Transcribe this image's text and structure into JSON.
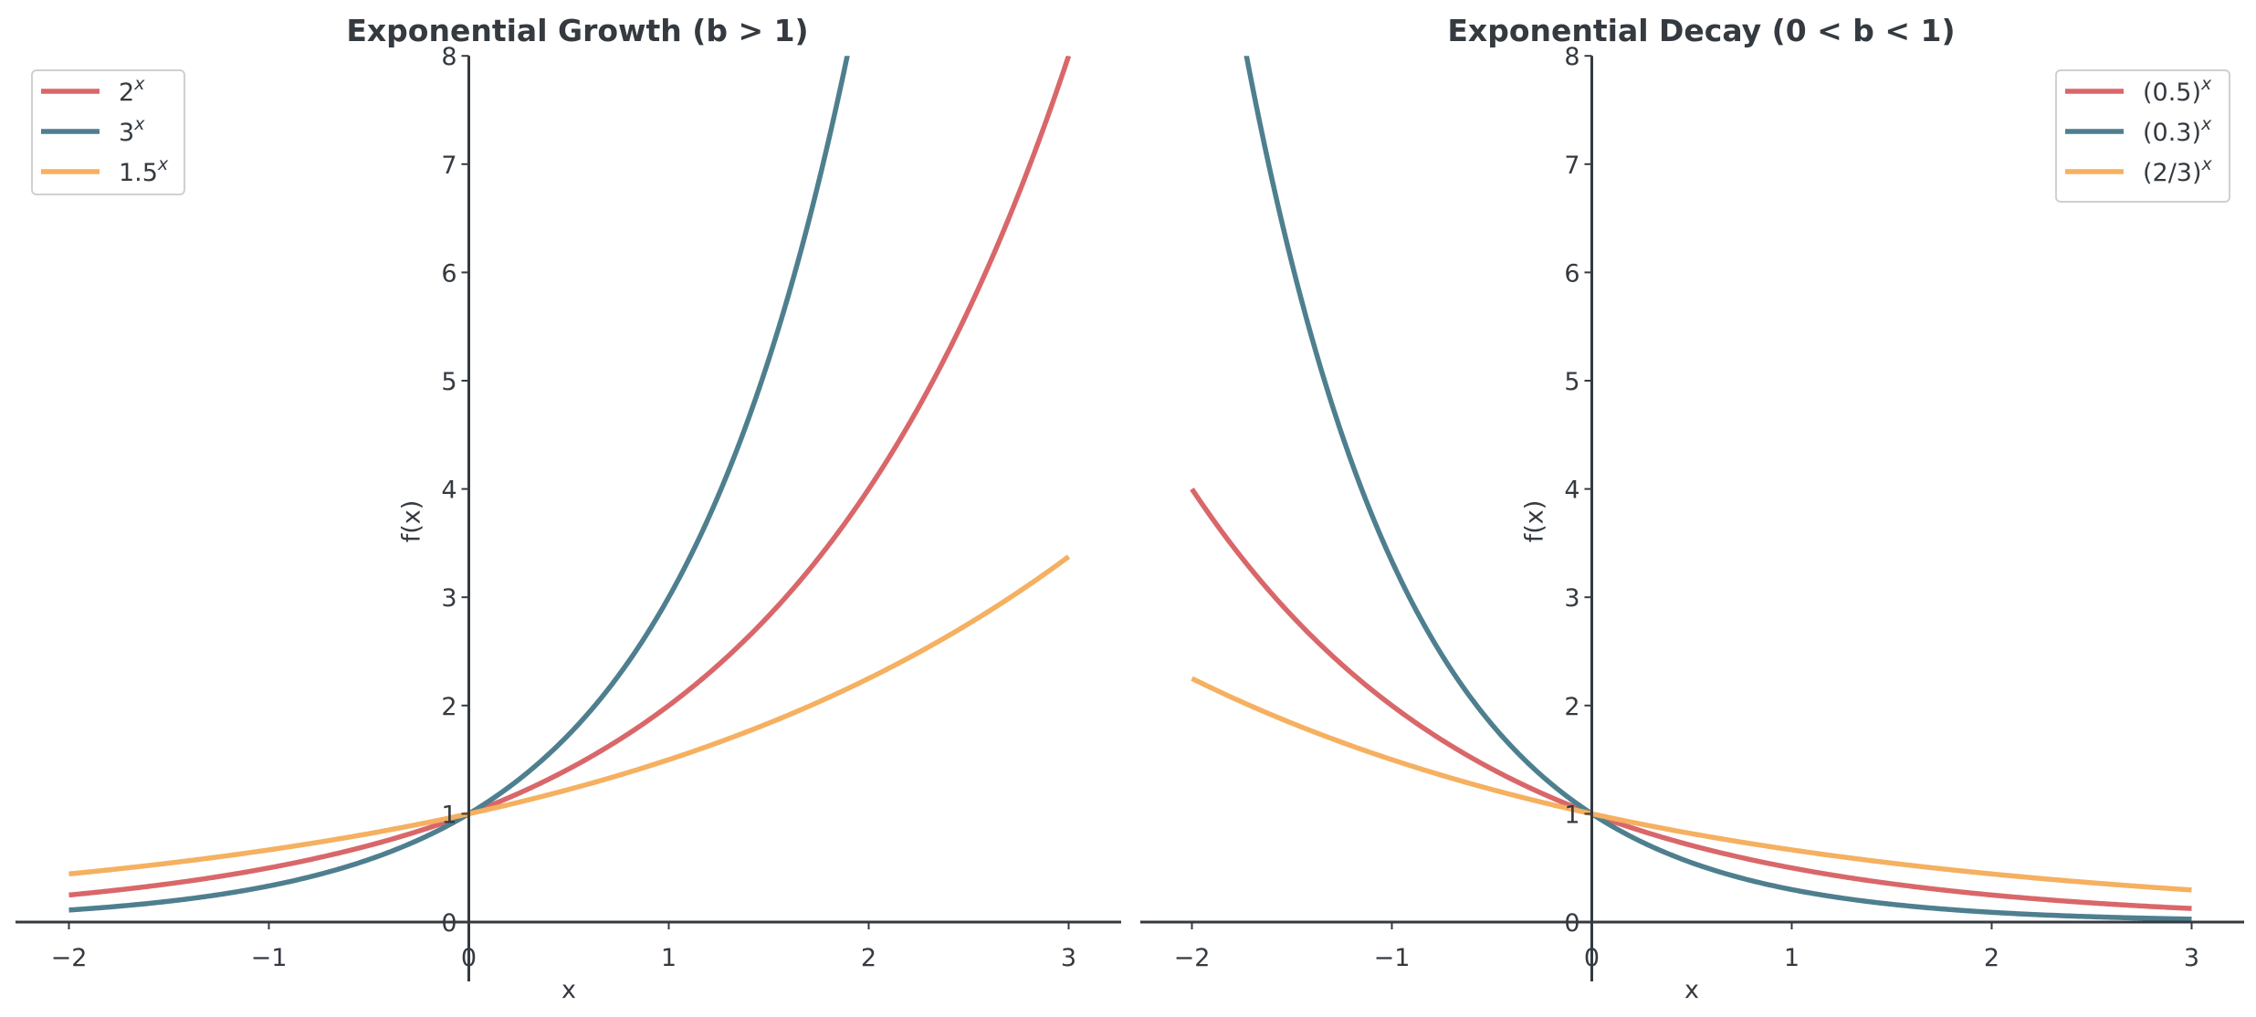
{
  "chart_data": [
    {
      "type": "line",
      "title": "Exponential Growth (b > 1)",
      "xlabel": "x",
      "ylabel": "f(x)",
      "xlim": [
        -2.25,
        3.25
      ],
      "ylim": [
        0,
        8
      ],
      "x_domain": [
        -2,
        3
      ],
      "xticks": [
        "−2",
        "−1",
        "0",
        "1",
        "2",
        "3"
      ],
      "xtick_values": [
        -2,
        -1,
        0,
        1,
        2,
        3
      ],
      "yticks": [
        "0",
        "1",
        "2",
        "3",
        "4",
        "5",
        "6",
        "7",
        "8"
      ],
      "ytick_values": [
        0,
        1,
        2,
        3,
        4,
        5,
        6,
        7,
        8
      ],
      "grid": false,
      "legend_position": "top-left",
      "series": [
        {
          "name": "2",
          "sup": "x",
          "function": "b^x",
          "base": 2,
          "color": "#d9676a"
        },
        {
          "name": "3",
          "sup": "x",
          "function": "b^x",
          "base": 3,
          "color": "#4e7f8f"
        },
        {
          "name": "1.5",
          "sup": "x",
          "function": "b^x",
          "base": 1.5,
          "color": "#f5b060"
        }
      ]
    },
    {
      "type": "line",
      "title": "Exponential Decay (0 < b < 1)",
      "xlabel": "x",
      "ylabel": "f(x)",
      "xlim": [
        -2.25,
        3.25
      ],
      "ylim": [
        0,
        8
      ],
      "x_domain": [
        -2,
        3
      ],
      "xticks": [
        "−2",
        "−1",
        "0",
        "1",
        "2",
        "3"
      ],
      "xtick_values": [
        -2,
        -1,
        0,
        1,
        2,
        3
      ],
      "yticks": [
        "0",
        "1",
        "2",
        "3",
        "4",
        "5",
        "6",
        "7",
        "8"
      ],
      "ytick_values": [
        0,
        1,
        2,
        3,
        4,
        5,
        6,
        7,
        8
      ],
      "grid": false,
      "legend_position": "top-right",
      "series": [
        {
          "name": "(0.5)",
          "sup": "x",
          "function": "b^x",
          "base": 0.5,
          "color": "#d9676a"
        },
        {
          "name": "(0.3)",
          "sup": "x",
          "function": "b^x",
          "base": 0.3,
          "color": "#4e7f8f"
        },
        {
          "name": "(2/3)",
          "sup": "x",
          "function": "b^x",
          "base": 0.6667,
          "color": "#f5b060"
        }
      ]
    }
  ],
  "colors": {
    "axis": "#343a40"
  }
}
